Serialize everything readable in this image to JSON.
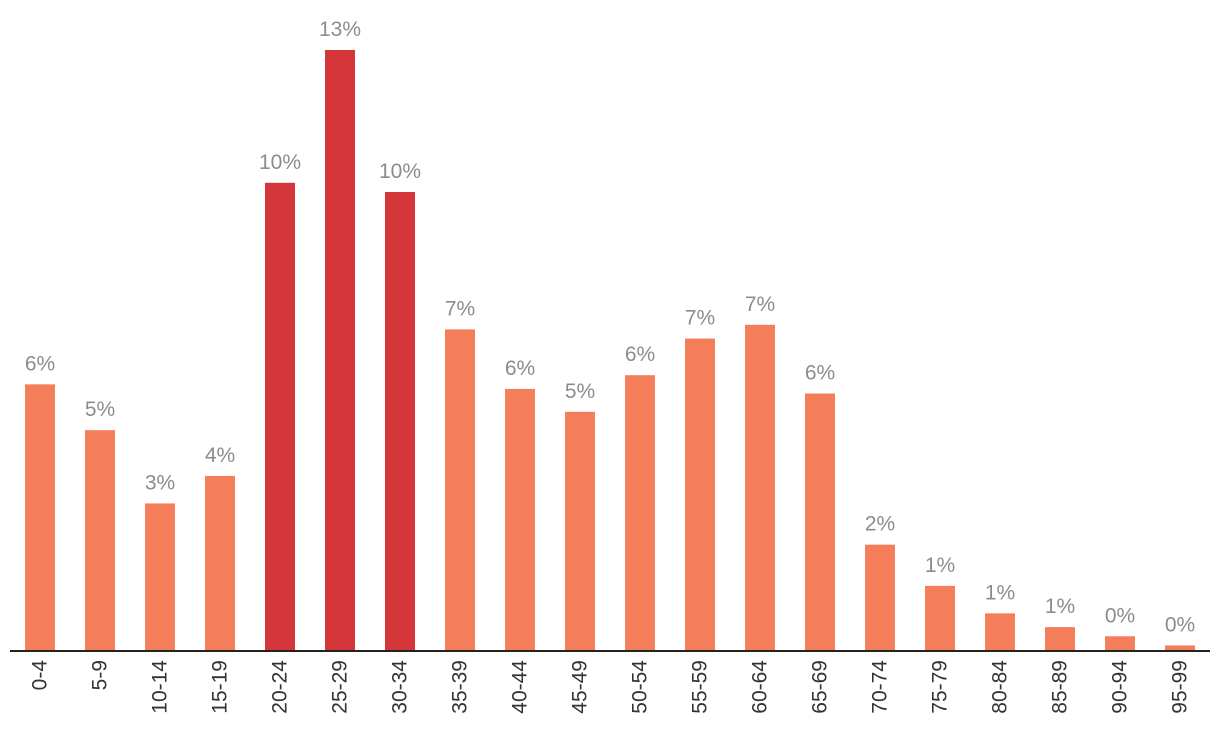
{
  "chart_data": {
    "type": "bar",
    "categories": [
      "0-4",
      "5-9",
      "10-14",
      "15-19",
      "20-24",
      "25-29",
      "30-34",
      "35-39",
      "40-44",
      "45-49",
      "50-54",
      "55-59",
      "60-64",
      "65-69",
      "70-74",
      "75-79",
      "80-84",
      "85-89",
      "90-94",
      "95-99"
    ],
    "values": [
      5.8,
      4.8,
      3.2,
      3.8,
      10.2,
      13.1,
      10.0,
      7.0,
      5.7,
      5.2,
      6.0,
      6.8,
      7.1,
      5.6,
      2.3,
      1.4,
      0.8,
      0.5,
      0.3,
      0.1
    ],
    "labels": [
      "6%",
      "5%",
      "3%",
      "4%",
      "10%",
      "13%",
      "10%",
      "7%",
      "6%",
      "5%",
      "6%",
      "7%",
      "7%",
      "6%",
      "2%",
      "1%",
      "1%",
      "1%",
      "0%",
      "0%"
    ],
    "highlighted": [
      "20-24",
      "25-29",
      "30-34"
    ],
    "colors": {
      "default": "#f47d5a",
      "highlight": "#d43539"
    },
    "xlabel": "",
    "ylabel": "",
    "ylim": [
      0,
      13.1
    ],
    "grid": false,
    "tick_rotation": -90
  }
}
